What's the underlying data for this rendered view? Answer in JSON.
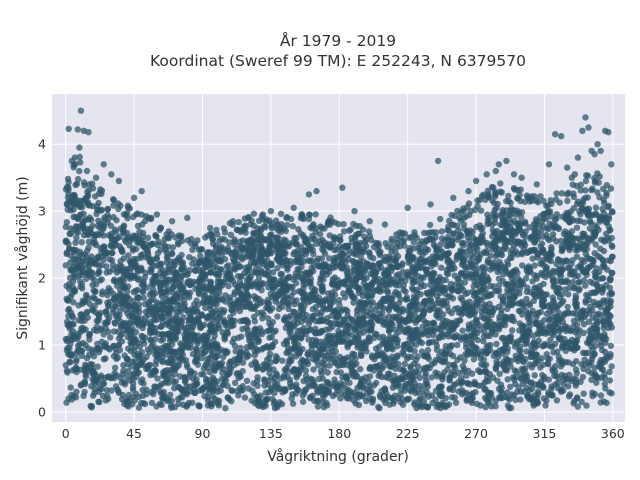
{
  "chart_data": {
    "type": "scatter",
    "title_lines": [
      "År 1979 - 2019",
      "Koordinat (Sweref 99 TM): E 252243, N 6379570"
    ],
    "xlabel": "Vågriktning (grader)",
    "ylabel": "Signifikant våghöjd (m)",
    "xlim": [
      -9,
      368
    ],
    "ylim": [
      -0.15,
      4.75
    ],
    "xticks": [
      0,
      45,
      90,
      135,
      180,
      225,
      270,
      315,
      360
    ],
    "yticks": [
      0,
      1,
      2,
      3,
      4
    ],
    "grid": true,
    "legend": "none",
    "colors": {
      "plot_background": "#e5e5f0",
      "grid": "#ffffff",
      "marker": "#2f5569"
    },
    "envelope": {
      "x": [
        0,
        5,
        10,
        15,
        20,
        30,
        45,
        60,
        75,
        90,
        105,
        120,
        135,
        150,
        165,
        180,
        195,
        210,
        225,
        240,
        255,
        270,
        285,
        300,
        315,
        330,
        345,
        360
      ],
      "ymax": [
        3.2,
        3.4,
        3.5,
        3.3,
        3.1,
        2.9,
        2.7,
        2.5,
        2.3,
        2.25,
        2.5,
        2.6,
        2.65,
        2.6,
        2.65,
        2.5,
        2.45,
        2.3,
        2.35,
        2.5,
        2.7,
        2.8,
        3.1,
        3.0,
        2.85,
        3.0,
        3.3,
        3.1
      ]
    },
    "outliers": [
      [
        2,
        4.23
      ],
      [
        8,
        4.22
      ],
      [
        10,
        4.5
      ],
      [
        12,
        4.2
      ],
      [
        15,
        4.18
      ],
      [
        6,
        3.8
      ],
      [
        9,
        3.95
      ],
      [
        4,
        3.75
      ],
      [
        14,
        3.6
      ],
      [
        20,
        3.5
      ],
      [
        25,
        3.7
      ],
      [
        30,
        3.55
      ],
      [
        35,
        3.45
      ],
      [
        45,
        3.2
      ],
      [
        50,
        3.3
      ],
      [
        60,
        2.95
      ],
      [
        70,
        2.85
      ],
      [
        80,
        2.9
      ],
      [
        95,
        2.75
      ],
      [
        110,
        2.85
      ],
      [
        120,
        2.9
      ],
      [
        135,
        3.0
      ],
      [
        150,
        3.05
      ],
      [
        160,
        3.25
      ],
      [
        165,
        3.3
      ],
      [
        175,
        2.85
      ],
      [
        182,
        3.35
      ],
      [
        190,
        3.0
      ],
      [
        200,
        2.85
      ],
      [
        210,
        2.8
      ],
      [
        225,
        3.05
      ],
      [
        240,
        3.1
      ],
      [
        245,
        3.75
      ],
      [
        255,
        3.2
      ],
      [
        265,
        3.3
      ],
      [
        270,
        3.45
      ],
      [
        277,
        3.55
      ],
      [
        283,
        3.6
      ],
      [
        285,
        3.7
      ],
      [
        290,
        3.75
      ],
      [
        295,
        3.55
      ],
      [
        300,
        3.5
      ],
      [
        310,
        3.4
      ],
      [
        318,
        3.7
      ],
      [
        322,
        4.15
      ],
      [
        326,
        4.12
      ],
      [
        330,
        3.65
      ],
      [
        335,
        3.55
      ],
      [
        340,
        4.2
      ],
      [
        342,
        4.4
      ],
      [
        344,
        4.25
      ],
      [
        346,
        3.9
      ],
      [
        348,
        3.85
      ],
      [
        350,
        4.0
      ],
      [
        352,
        3.9
      ],
      [
        355,
        4.2
      ],
      [
        357,
        4.18
      ],
      [
        359,
        3.7
      ],
      [
        337,
        3.8
      ],
      [
        333,
        3.5
      ]
    ]
  }
}
